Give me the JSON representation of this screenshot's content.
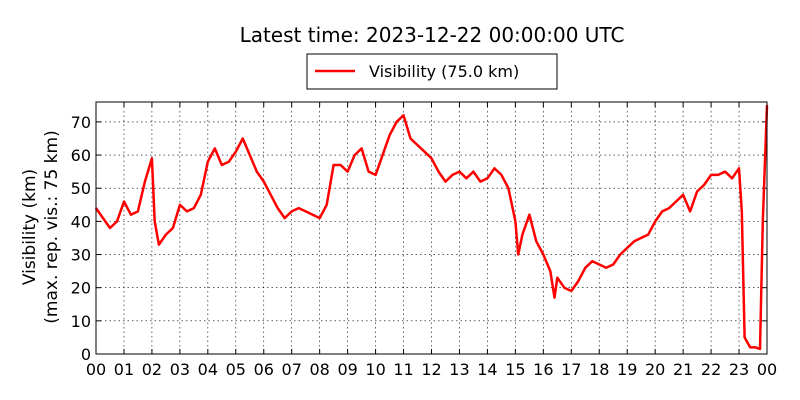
{
  "chart_data": {
    "type": "line",
    "title": "Latest time: 2023-12-22 00:00:00 UTC",
    "ylabel_line1": "Visibility (km)",
    "ylabel_line2": "(max. rep. vis.: 75 km)",
    "xlabel": "",
    "ylim": [
      0,
      76
    ],
    "xlim": [
      0,
      24
    ],
    "xtick_labels": [
      "00",
      "01",
      "02",
      "03",
      "04",
      "05",
      "06",
      "07",
      "08",
      "09",
      "10",
      "11",
      "12",
      "13",
      "14",
      "15",
      "16",
      "17",
      "18",
      "19",
      "20",
      "21",
      "22",
      "23",
      "00"
    ],
    "ytick_values": [
      0,
      10,
      20,
      30,
      40,
      50,
      60,
      70
    ],
    "grid": true,
    "legend_position": "top-center",
    "series": [
      {
        "name": "Visibility (75.0 km)",
        "color": "#ff0000",
        "x": [
          0.0,
          0.25,
          0.5,
          0.75,
          1.0,
          1.25,
          1.5,
          1.75,
          2.0,
          2.1,
          2.25,
          2.5,
          2.75,
          3.0,
          3.25,
          3.5,
          3.75,
          4.0,
          4.25,
          4.5,
          4.75,
          5.0,
          5.25,
          5.5,
          5.75,
          6.0,
          6.25,
          6.5,
          6.75,
          7.0,
          7.25,
          7.5,
          7.75,
          8.0,
          8.25,
          8.5,
          8.75,
          9.0,
          9.25,
          9.5,
          9.75,
          10.0,
          10.25,
          10.5,
          10.75,
          11.0,
          11.25,
          11.5,
          11.75,
          12.0,
          12.25,
          12.5,
          12.75,
          13.0,
          13.25,
          13.5,
          13.75,
          14.0,
          14.25,
          14.5,
          14.75,
          15.0,
          15.1,
          15.25,
          15.5,
          15.75,
          16.0,
          16.25,
          16.4,
          16.5,
          16.75,
          17.0,
          17.25,
          17.5,
          17.75,
          18.0,
          18.25,
          18.5,
          18.75,
          19.0,
          19.25,
          19.5,
          19.75,
          20.0,
          20.25,
          20.5,
          20.75,
          21.0,
          21.25,
          21.5,
          21.75,
          22.0,
          22.25,
          22.5,
          22.75,
          23.0,
          23.1,
          23.2,
          23.4,
          23.6,
          23.75,
          23.85,
          24.0
        ],
        "values": [
          44,
          41,
          38,
          40,
          46,
          42,
          43,
          52,
          59,
          40,
          33,
          36,
          38,
          45,
          43,
          44,
          48,
          58,
          62,
          57,
          58,
          61,
          65,
          60,
          55,
          52,
          48,
          44,
          41,
          43,
          44,
          43,
          42,
          41,
          45,
          57,
          57,
          55,
          60,
          62,
          55,
          54,
          60,
          66,
          70,
          72,
          65,
          63,
          61,
          59,
          55,
          52,
          54,
          55,
          53,
          55,
          52,
          53,
          56,
          54,
          50,
          40,
          30,
          36,
          42,
          34,
          30,
          25,
          17,
          23,
          20,
          19,
          22,
          26,
          28,
          27,
          26,
          27,
          30,
          32,
          34,
          35,
          36,
          40,
          43,
          44,
          46,
          48,
          43,
          49,
          51,
          54,
          54,
          55,
          53,
          56,
          43,
          5,
          2,
          2,
          1.5,
          40,
          75
        ]
      }
    ]
  }
}
